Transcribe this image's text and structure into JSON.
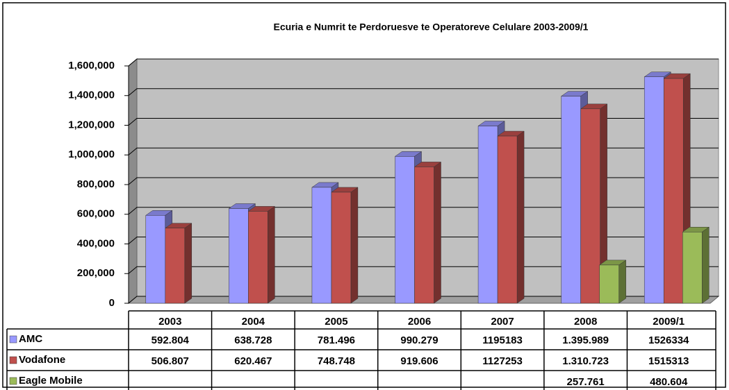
{
  "chart_data": {
    "type": "bar3d",
    "title": "Ecuria e Numrit te Perdoruesve  te Operatoreve Celulare 2003-2009/1",
    "categories": [
      "2003",
      "2004",
      "2005",
      "2006",
      "2007",
      "2008",
      "2009/1"
    ],
    "series": [
      {
        "name": "AMC",
        "color": "#9999ff",
        "values": [
          592804,
          638728,
          781496,
          990279,
          1195183,
          1395989,
          1526334
        ],
        "value_labels": [
          "592.804",
          "638.728",
          "781.496",
          "990.279",
          "1195183",
          "1.395.989",
          "1526334"
        ]
      },
      {
        "name": "Vodafone",
        "color": "#c0504d",
        "values": [
          506807,
          620467,
          748748,
          919606,
          1127253,
          1310723,
          1515313
        ],
        "value_labels": [
          "506.807",
          "620.467",
          "748.748",
          "919.606",
          "1127253",
          "1.310.723",
          "1515313"
        ]
      },
      {
        "name": "Eagle Mobile",
        "color": "#9bbb59",
        "values": [
          null,
          null,
          null,
          null,
          null,
          257761,
          480604
        ],
        "value_labels": [
          null,
          null,
          null,
          null,
          null,
          "257.761",
          "480.604"
        ]
      }
    ],
    "ylim": [
      0,
      1600000
    ],
    "yticks": [
      0,
      {
        "value": 200000,
        "label": "200,000"
      },
      {
        "value": 400000,
        "label": "400,000"
      },
      {
        "value": 600000,
        "label": "600,000"
      },
      {
        "value": 800000,
        "label": "800,000"
      },
      {
        "value": 1000000,
        "label": "1,000,000"
      },
      {
        "value": 1200000,
        "label": "1,200,000"
      },
      {
        "value": 1400000,
        "label": "1,400,000"
      },
      {
        "value": 1600000,
        "label": "1,600,000"
      }
    ],
    "grid": true
  }
}
